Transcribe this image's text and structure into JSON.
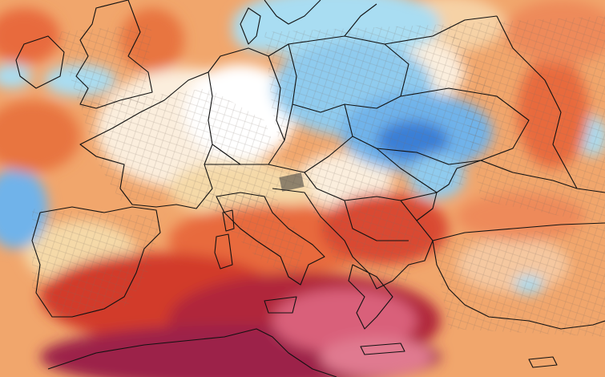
{
  "map": {
    "type": "temperature-anomaly",
    "region": "Europe",
    "palette": {
      "strong_cold": "#3b7fd6",
      "cold": "#6fb3ea",
      "light_cold": "#a9ddf2",
      "neutral": "#ffffff",
      "light_warm": "#f5d9a8",
      "warm": "#f1a66c",
      "strong_warm": "#e86a3c",
      "hot": "#d23a2a",
      "very_hot": "#b0283a",
      "extreme": "#9c2448",
      "peak": "#d9607a",
      "border_color": "#111111"
    },
    "icons": {
      "borders": "country-borders",
      "subdivisions": "regional-subdivisions"
    }
  }
}
